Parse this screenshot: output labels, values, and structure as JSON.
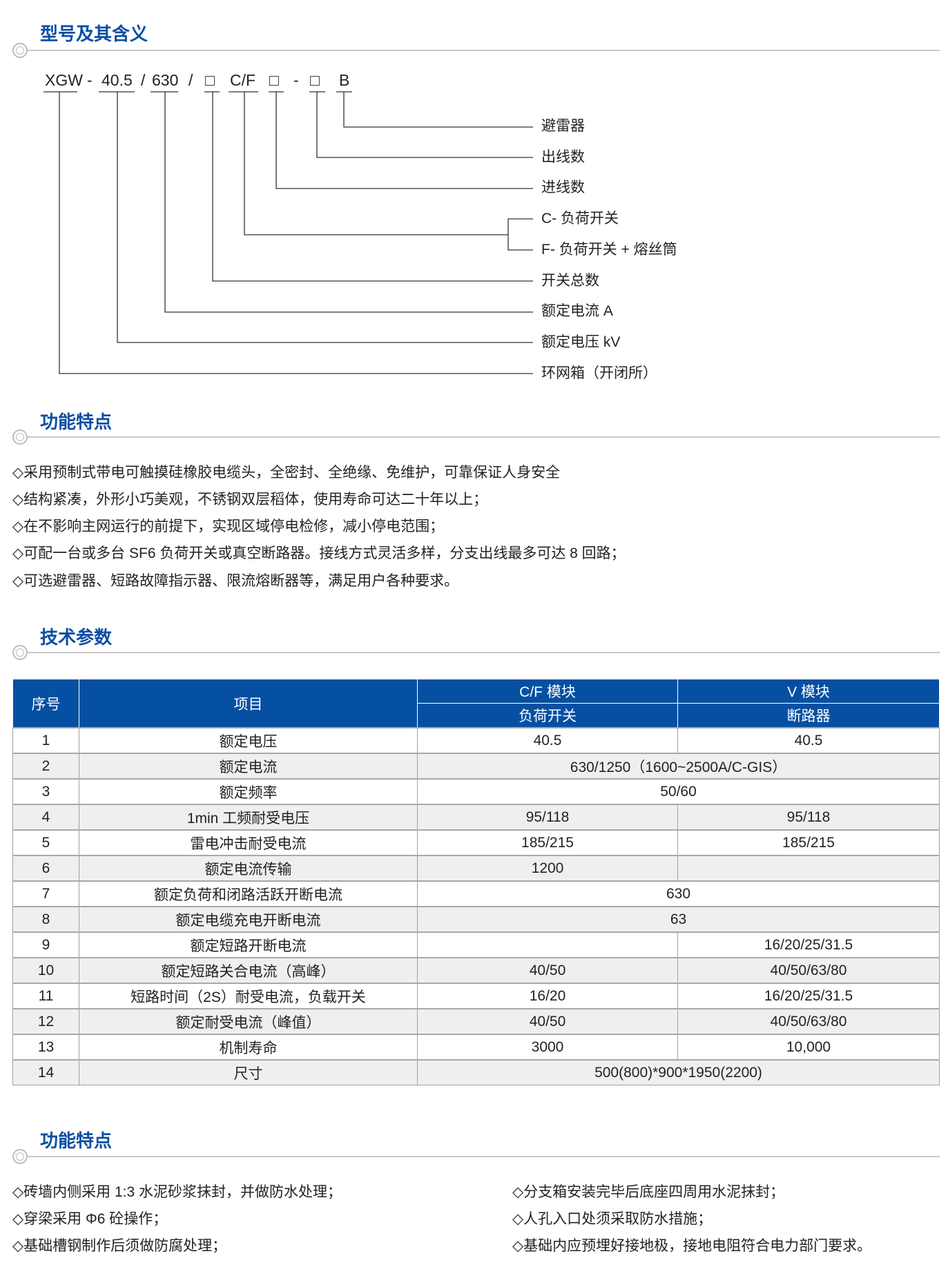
{
  "colors": {
    "accent": "#0a4ea2",
    "header_bg": "#0550a2",
    "alt_row": "#efefef"
  },
  "sections": {
    "model": {
      "title": "型号及其含义"
    },
    "features": {
      "title": "功能特点",
      "items": [
        "◇采用预制式带电可触摸硅橡胶电缆头，全密封、全绝缘、免维护，可靠保证人身安全",
        "◇结构紧凑，外形小巧美观，不锈钢双层稻体，使用寿命可达二十年以上；",
        "◇在不影响主网运行的前提下，实现区域停电检修，减小停电范围；",
        "◇可配一台或多台 SF6 负荷开关或真空断路器。接线方式灵活多样，分支出线最多可达 8 回路；",
        "◇可选避雷器、短路故障指示器、限流熔断器等，满足用户各种要求。"
      ]
    },
    "params": {
      "title": "技术参数"
    },
    "features2": {
      "title": "功能特点",
      "left": [
        "◇砖墙内侧采用 1:3 水泥砂浆抹封，并做防水处理；",
        "◇穿梁采用 Φ6 砼操作；",
        "◇基础槽钢制作后须做防腐处理；"
      ],
      "right": [
        "◇分支箱安装完毕后底座四周用水泥抹封；",
        "◇人孔入口处须采取防水措施；",
        "◇基础内应预埋好接地极，接地电阻符合电力部门要求。"
      ]
    }
  },
  "formula": {
    "parts": [
      "XGW",
      "-",
      "40.5",
      "/",
      "630",
      "/",
      "□",
      "C/F",
      "□",
      "-",
      "□",
      "B"
    ]
  },
  "meanings": [
    "避雷器",
    "出线数",
    "进线数",
    "C- 负荷开关",
    "F- 负荷开关 + 熔丝筒",
    "开关总数",
    "额定电流 A",
    "额定电压 kV",
    "环网箱（开闭所）"
  ],
  "table": {
    "headers": {
      "no": "序号",
      "item": "项目",
      "cf": "C/F 模块",
      "cf_sub": "负荷开关",
      "v": "V 模块",
      "v_sub": "断路器"
    },
    "rows": [
      {
        "no": "1",
        "item": "额定电压",
        "cf": "40.5",
        "v": "40.5"
      },
      {
        "no": "2",
        "item": "额定电流",
        "span": "630/1250（1600~2500A/C-GIS）"
      },
      {
        "no": "3",
        "item": "额定频率",
        "span": "50/60"
      },
      {
        "no": "4",
        "item": "1min 工频耐受电压",
        "cf": "95/118",
        "v": "95/118"
      },
      {
        "no": "5",
        "item": "雷电冲击耐受电流",
        "cf": "185/215",
        "v": "185/215"
      },
      {
        "no": "6",
        "item": "额定电流传输",
        "cf": "1200",
        "v": ""
      },
      {
        "no": "7",
        "item": "额定负荷和闭路活跃开断电流",
        "span": "630"
      },
      {
        "no": "8",
        "item": "额定电缆充电开断电流",
        "span": "63"
      },
      {
        "no": "9",
        "item": "额定短路开断电流",
        "cf": "",
        "v": "16/20/25/31.5"
      },
      {
        "no": "10",
        "item": "额定短路关合电流（高峰）",
        "cf": "40/50",
        "v": "40/50/63/80"
      },
      {
        "no": "11",
        "item": "短路时间（2S）耐受电流，负载开关",
        "cf": "16/20",
        "v": "16/20/25/31.5"
      },
      {
        "no": "12",
        "item": "额定耐受电流（峰值）",
        "cf": "40/50",
        "v": "40/50/63/80"
      },
      {
        "no": "13",
        "item": "机制寿命",
        "cf": "3000",
        "v": "10,000"
      },
      {
        "no": "14",
        "item": "尺寸",
        "span": "500(800)*900*1950(2200)"
      }
    ]
  }
}
